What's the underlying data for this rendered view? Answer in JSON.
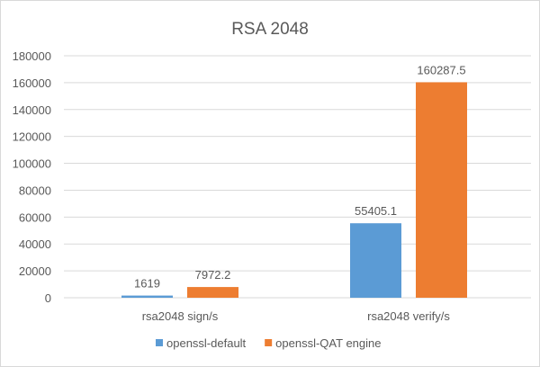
{
  "chart_data": {
    "type": "bar",
    "title": "RSA 2048",
    "categories": [
      "rsa2048 sign/s",
      "rsa2048 verify/s"
    ],
    "series": [
      {
        "name": "openssl-default",
        "values": [
          1619,
          55405.1
        ],
        "labels": [
          "1619",
          "55405.1"
        ],
        "color": "#5b9bd5"
      },
      {
        "name": "openssl-QAT engine",
        "values": [
          7972.2,
          160287.5
        ],
        "labels": [
          "7972.2",
          "160287.5"
        ],
        "color": "#ed7d31"
      }
    ],
    "ylim": [
      0,
      180000
    ],
    "yticks": [
      0,
      20000,
      40000,
      60000,
      80000,
      100000,
      120000,
      140000,
      160000,
      180000
    ],
    "grid": true,
    "legend": "bottom"
  }
}
